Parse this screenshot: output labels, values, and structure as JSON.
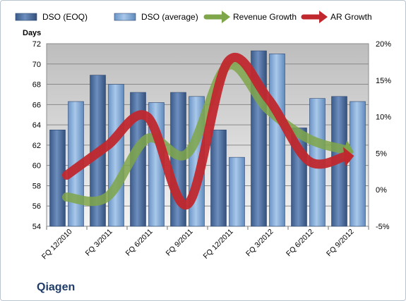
{
  "chart_data": {
    "type": "bar",
    "company": "Qiagen",
    "ylabel": "Days",
    "categories": [
      "FQ 12/2010",
      "FQ 3/2011",
      "FQ 6/2011",
      "FQ 9/2011",
      "FQ 12/2011",
      "FQ 3/2012",
      "FQ 6/2012",
      "FQ 9/2012"
    ],
    "ylim": [
      54,
      72
    ],
    "yticks": [
      "54",
      "56",
      "58",
      "60",
      "62",
      "64",
      "66",
      "68",
      "70",
      "72"
    ],
    "y2lim": [
      -5,
      20
    ],
    "y2ticks": [
      "-5%",
      "0%",
      "5%",
      "10%",
      "15%",
      "20%"
    ],
    "grid": true,
    "legend_position": "top",
    "series": [
      {
        "name": "DSO (EOQ)",
        "kind": "bar",
        "color": "#4d6d9c",
        "values": [
          63.5,
          68.9,
          67.2,
          67.2,
          63.5,
          71.3,
          63.7,
          66.8
        ]
      },
      {
        "name": "DSO (average)",
        "kind": "bar",
        "color": "#7fa7d6",
        "values": [
          66.3,
          68.0,
          66.2,
          66.8,
          60.8,
          71.0,
          66.6,
          66.3
        ]
      },
      {
        "name": "Revenue Growth",
        "kind": "trend-arrow",
        "axis": "right",
        "color": "#7fa64a",
        "values": [
          -1.0,
          -1.0,
          7.0,
          5.0,
          17.0,
          11.0,
          7.0,
          5.5
        ]
      },
      {
        "name": "AR Growth",
        "kind": "trend-arrow",
        "axis": "right",
        "color": "#c0282e",
        "values": [
          2.0,
          6.0,
          10.0,
          -2.0,
          17.5,
          12.5,
          4.0,
          4.5
        ]
      }
    ]
  }
}
